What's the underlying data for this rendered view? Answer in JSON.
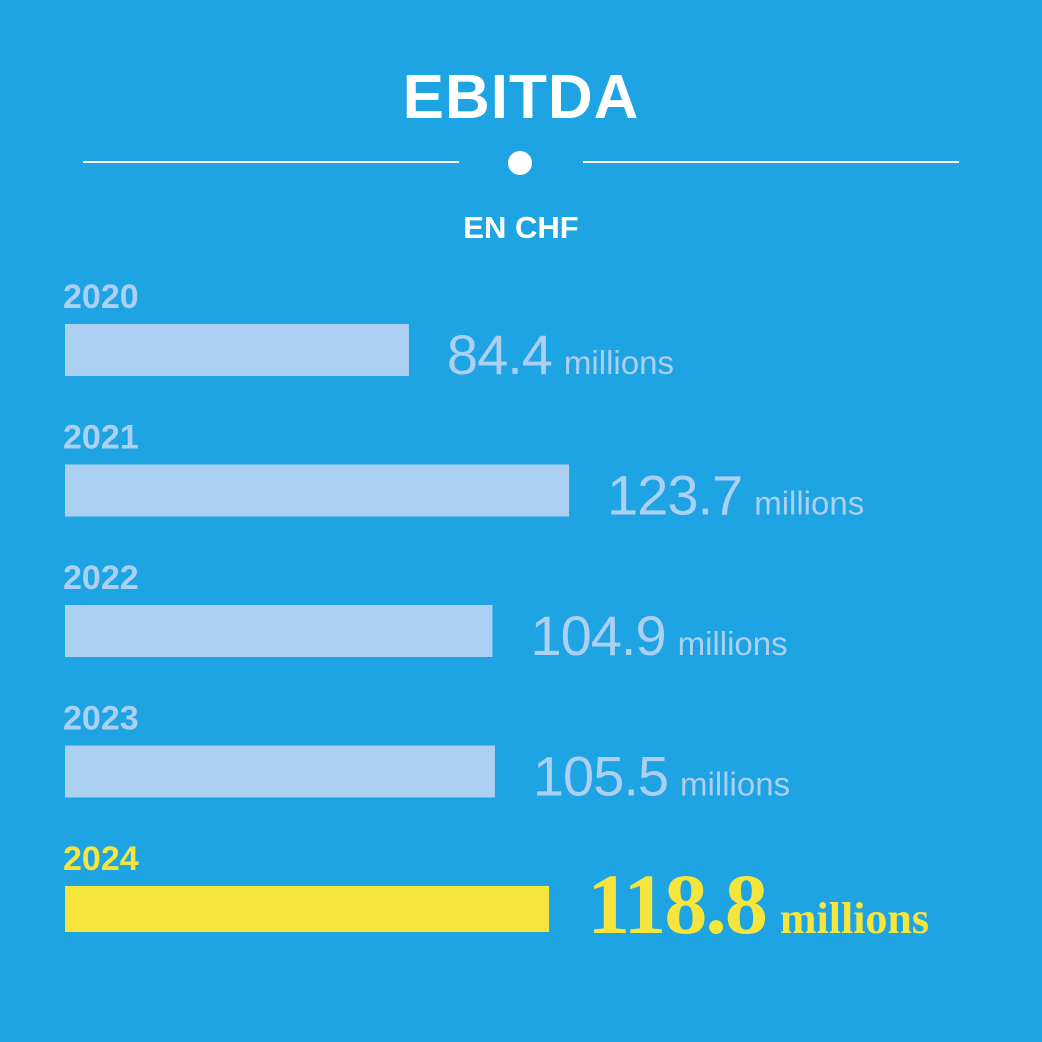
{
  "title": "EBITDA",
  "subtitle": "EN CHF",
  "colors": {
    "background": "#1ea3e3",
    "bar": "#acd0f1",
    "highlight": "#f6e53c",
    "rule": "#ffffff"
  },
  "chart_data": {
    "type": "bar",
    "orientation": "horizontal",
    "title": "EBITDA",
    "subtitle": "EN CHF",
    "categories": [
      "2020",
      "2021",
      "2022",
      "2023",
      "2024"
    ],
    "values": [
      84.4,
      123.7,
      104.9,
      105.5,
      118.8
    ],
    "value_labels": [
      "84.4",
      "123.7",
      "104.9",
      "105.5",
      "118.8"
    ],
    "unit_label": "millions",
    "highlighted_category": "2024",
    "grid": false,
    "legend": "none"
  }
}
